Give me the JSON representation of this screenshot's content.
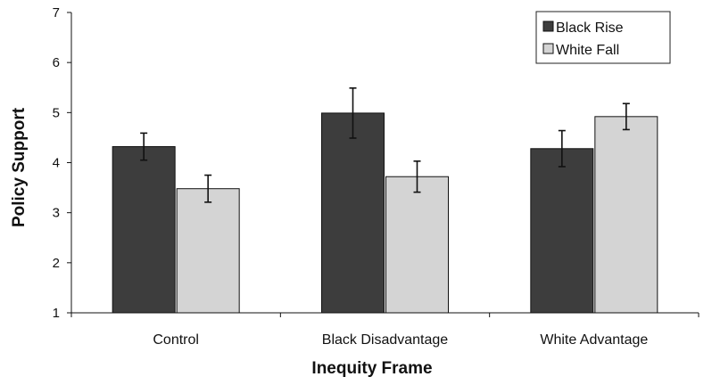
{
  "chart_data": {
    "type": "bar",
    "title": "",
    "xlabel": "Inequity Frame",
    "ylabel": "Policy Support",
    "categories": [
      "Control",
      "Black Disadvantage",
      "White Advantage"
    ],
    "ylim": [
      1,
      7
    ],
    "yticks": [
      "1",
      "2",
      "3",
      "4",
      "5",
      "6",
      "7"
    ],
    "grid": false,
    "legend_position": "top-right",
    "series": [
      {
        "name": "Black Rise",
        "color": "#3d3d3d",
        "values": [
          4.32,
          4.99,
          4.28
        ],
        "error": [
          0.27,
          0.5,
          0.36
        ]
      },
      {
        "name": "White Fall",
        "color": "#d4d4d4",
        "values": [
          3.48,
          3.72,
          4.92
        ],
        "error": [
          0.27,
          0.31,
          0.26
        ]
      }
    ]
  }
}
